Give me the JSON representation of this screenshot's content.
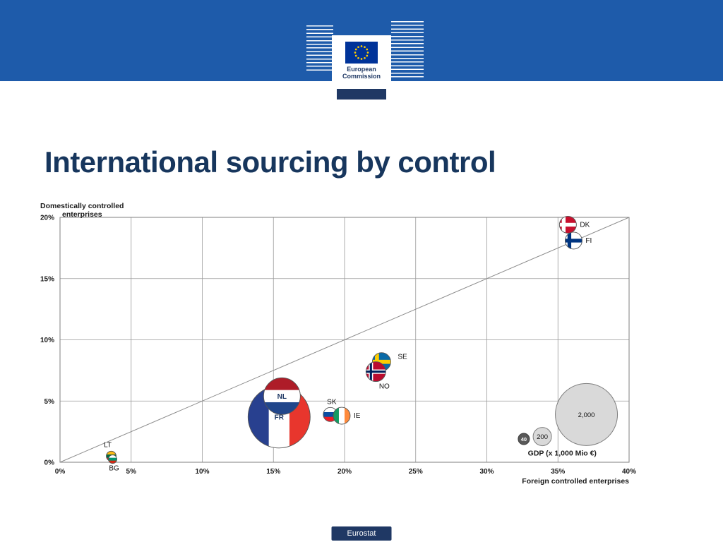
{
  "colors": {
    "band-blue": "#1e5baa",
    "navy": "#1f3864",
    "title-blue": "#17365d",
    "eu-flag-blue": "#003399",
    "eu-star-yellow": "#ffcc00"
  },
  "header": {
    "logo": {
      "line1": "European",
      "line2": "Commission"
    }
  },
  "title": "International sourcing by control",
  "footer": {
    "badge": "Eurostat"
  },
  "chart_data": {
    "type": "bubble",
    "title": "International sourcing by control",
    "xlabel": "Foreign controlled enterprises",
    "ylabel_line1": "Domestically controlled",
    "ylabel_line2": "enterprises",
    "xlim": [
      0,
      40
    ],
    "ylim": [
      0,
      20
    ],
    "grid": true,
    "x_ticks": [
      {
        "v": 0,
        "label": "0%"
      },
      {
        "v": 5,
        "label": "5%"
      },
      {
        "v": 10,
        "label": "10%"
      },
      {
        "v": 15,
        "label": "15%"
      },
      {
        "v": 20,
        "label": "20%"
      },
      {
        "v": 25,
        "label": "25%"
      },
      {
        "v": 30,
        "label": "30%"
      },
      {
        "v": 35,
        "label": "35%"
      },
      {
        "v": 40,
        "label": "40%"
      }
    ],
    "y_ticks": [
      {
        "v": 0,
        "label": "0%"
      },
      {
        "v": 5,
        "label": "5%"
      },
      {
        "v": 10,
        "label": "10%"
      },
      {
        "v": 15,
        "label": "15%"
      },
      {
        "v": 20,
        "label": "20%"
      }
    ],
    "diagonal": {
      "x1": 0,
      "y1": 0,
      "x2": 40,
      "y2": 20
    },
    "points": [
      {
        "code": "fr",
        "flag": "fr-flag",
        "label": "FR",
        "x": 15.4,
        "y": 3.7,
        "r": 44,
        "label_pos": "inside"
      },
      {
        "code": "nl",
        "flag": "nl-flag",
        "label": "NL",
        "x": 15.6,
        "y": 5.4,
        "r": 26,
        "label_pos": "inside"
      },
      {
        "code": "sk",
        "flag": "sk-flag",
        "label": "SK",
        "x": 19.0,
        "y": 3.9,
        "r": 10,
        "label_pos": "above"
      },
      {
        "code": "ie",
        "flag": "ie-flag",
        "label": "IE",
        "x": 19.8,
        "y": 3.8,
        "r": 12,
        "label_pos": "right"
      },
      {
        "code": "se",
        "flag": "se-flag",
        "label": "SE",
        "x": 22.6,
        "y": 8.2,
        "r": 13,
        "label_pos": "right-above"
      },
      {
        "code": "no",
        "flag": "no-flag",
        "label": "NO",
        "x": 22.2,
        "y": 7.4,
        "r": 14,
        "label_pos": "below-right"
      },
      {
        "code": "dk",
        "flag": "dk-flag",
        "label": "DK",
        "x": 35.7,
        "y": 19.4,
        "r": 12,
        "label_pos": "right"
      },
      {
        "code": "fi",
        "flag": "fi-flag",
        "label": "FI",
        "x": 36.1,
        "y": 18.1,
        "r": 12,
        "label_pos": "right"
      },
      {
        "code": "lt",
        "flag": "lt-flag",
        "label": "LT",
        "x": 3.6,
        "y": 0.5,
        "r": 7,
        "label_pos": "above-left"
      },
      {
        "code": "bg",
        "flag": "bg-flag",
        "label": "BG",
        "x": 3.7,
        "y": 0.25,
        "r": 6,
        "label_pos": "below"
      }
    ],
    "legend": {
      "title": "GDP (x 1,000 Mio €)",
      "title_x": 35.3,
      "title_y": 0.55,
      "bubbles": [
        {
          "value": "40",
          "x": 32.6,
          "y": 1.9,
          "r": 8,
          "variant": "dark"
        },
        {
          "value": "200",
          "x": 33.9,
          "y": 2.1,
          "r": 13,
          "variant": "light"
        },
        {
          "value": "2,000",
          "x": 37.0,
          "y": 3.9,
          "r": 44,
          "variant": "light"
        }
      ]
    }
  }
}
